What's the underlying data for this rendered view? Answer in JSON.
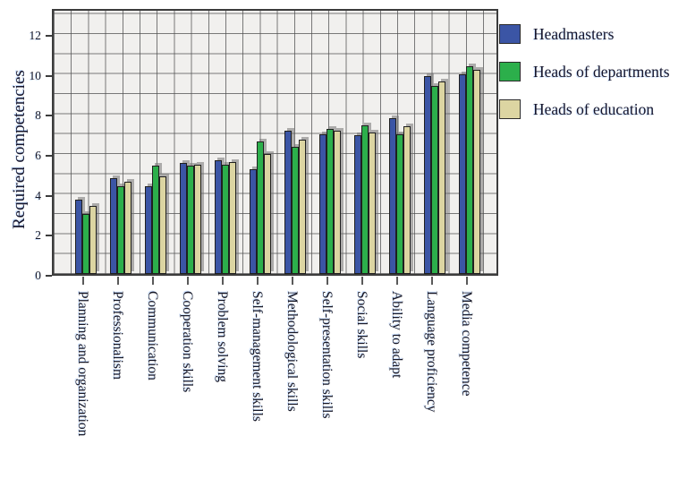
{
  "ylabel": "Required competencies",
  "legend": {
    "position": "right-top",
    "items": [
      {
        "label": "Headmasters",
        "color": "#3B55A5"
      },
      {
        "label": "Heads of departments",
        "color": "#2CAF4B"
      },
      {
        "label": "Heads of education",
        "color": "#DCD5A2"
      }
    ]
  },
  "chart_data": {
    "type": "bar",
    "title": "",
    "xlabel": "",
    "ylabel": "Required competencies",
    "categories": [
      "Planning and organization",
      "Professionalism",
      "Communication",
      "Cooperation skills",
      "Problem solving",
      "Self-management skills",
      "Methodological skills",
      "Self-presentation skills",
      "Social skills",
      "Ability to adapt",
      "Language proficiency",
      "Media competence"
    ],
    "series": [
      {
        "name": "Headmasters",
        "color": "#3B55A5",
        "values": [
          3.7,
          4.8,
          4.4,
          5.55,
          5.7,
          5.25,
          7.15,
          7.0,
          6.95,
          7.8,
          9.9,
          10.0
        ]
      },
      {
        "name": "Heads of departments",
        "color": "#2CAF4B",
        "values": [
          3.0,
          4.4,
          5.4,
          5.4,
          5.45,
          6.65,
          6.35,
          7.25,
          7.45,
          7.0,
          9.4,
          10.4
        ]
      },
      {
        "name": "Heads of education",
        "color": "#DCD5A2",
        "values": [
          3.4,
          4.6,
          4.9,
          5.45,
          5.6,
          6.0,
          6.7,
          7.15,
          7.1,
          7.4,
          9.65,
          10.2
        ]
      }
    ],
    "ylim": [
      0,
      13.35
    ],
    "yticks": [
      0,
      2,
      4,
      6,
      8,
      10,
      12
    ],
    "ygrid_interval": 1,
    "grid": "plaid (horizontal every 1 unit, vertical plaid lines), on",
    "legend_position": "right-top",
    "plot_background": "#f1f0ee",
    "grid_color": "#6e6e6e",
    "bar_outline_color": "#1f1f1f",
    "bar_shadow_color": "#8f8f8f"
  }
}
